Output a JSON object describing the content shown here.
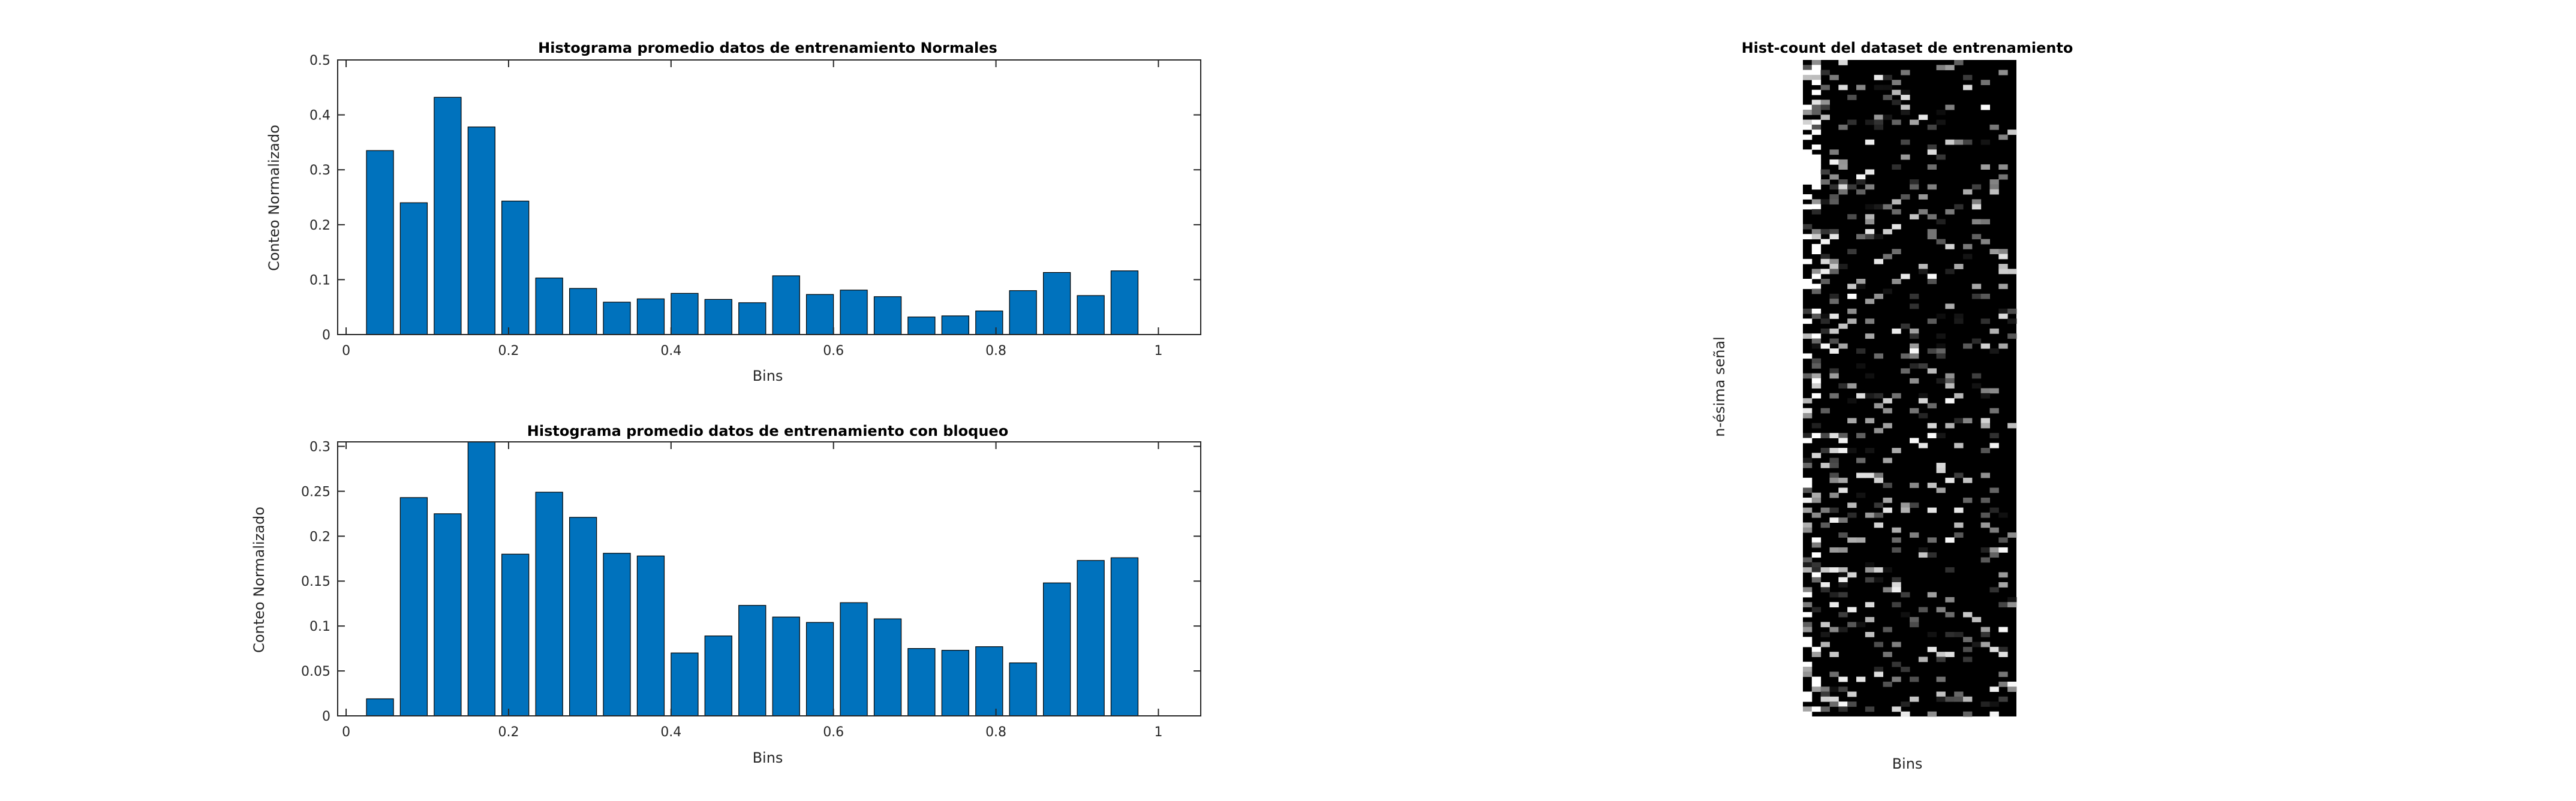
{
  "chart_data": [
    {
      "type": "bar",
      "title": "Histograma promedio datos de entrenamiento Normales",
      "xlabel": "Bins",
      "ylabel": "Conteo Normalizado",
      "x": [
        0.0417,
        0.0833,
        0.125,
        0.1667,
        0.2083,
        0.25,
        0.2917,
        0.3333,
        0.375,
        0.4167,
        0.4583,
        0.5,
        0.5417,
        0.5833,
        0.625,
        0.6667,
        0.7083,
        0.75,
        0.7917,
        0.8333,
        0.875,
        0.9167,
        0.9583,
        1.0
      ],
      "values": [
        0.335,
        0.24,
        0.432,
        0.378,
        0.243,
        0.103,
        0.084,
        0.059,
        0.065,
        0.075,
        0.064,
        0.058,
        0.107,
        0.073,
        0.081,
        0.069,
        0.032,
        0.034,
        0.043,
        0.08,
        0.113,
        0.071,
        0.116,
        0.0
      ],
      "xlim": [
        -0.0104,
        1.0521
      ],
      "ylim": [
        0,
        0.5
      ],
      "xticks": [
        "0",
        "0.2",
        "0.4",
        "0.6",
        "0.8",
        "1"
      ],
      "xtick_values": [
        0,
        0.2,
        0.4,
        0.6,
        0.8,
        1
      ],
      "yticks": [
        "0",
        "0.1",
        "0.2",
        "0.3",
        "0.4",
        "0.5"
      ],
      "ytick_values": [
        0,
        0.1,
        0.2,
        0.3,
        0.4,
        0.5
      ],
      "grid": false,
      "bar_color": "#0072BD"
    },
    {
      "type": "bar",
      "title": "Histograma promedio datos de entrenamiento con bloqueo",
      "xlabel": "Bins",
      "ylabel": "Conteo Normalizado",
      "x": [
        0.0417,
        0.0833,
        0.125,
        0.1667,
        0.2083,
        0.25,
        0.2917,
        0.3333,
        0.375,
        0.4167,
        0.4583,
        0.5,
        0.5417,
        0.5833,
        0.625,
        0.6667,
        0.7083,
        0.75,
        0.7917,
        0.8333,
        0.875,
        0.9167,
        0.9583,
        1.0
      ],
      "values": [
        0.019,
        0.243,
        0.225,
        0.305,
        0.18,
        0.249,
        0.221,
        0.181,
        0.178,
        0.07,
        0.089,
        0.123,
        0.11,
        0.104,
        0.126,
        0.108,
        0.075,
        0.073,
        0.077,
        0.059,
        0.148,
        0.173,
        0.176,
        0.0
      ],
      "xlim": [
        -0.0104,
        1.0521
      ],
      "ylim": [
        0,
        0.305
      ],
      "xticks": [
        "0",
        "0.2",
        "0.4",
        "0.6",
        "0.8",
        "1"
      ],
      "xtick_values": [
        0,
        0.2,
        0.4,
        0.6,
        0.8,
        1
      ],
      "yticks": [
        "0",
        "0.05",
        "0.1",
        "0.15",
        "0.2",
        "0.25",
        "0.3"
      ],
      "ytick_values": [
        0,
        0.05,
        0.1,
        0.15,
        0.2,
        0.25,
        0.3
      ],
      "grid": false,
      "bar_color": "#0072BD"
    },
    {
      "type": "heatmap",
      "title": "Hist-count del dataset de entrenamiento",
      "xlabel": "Bins",
      "ylabel": "n-ésima señal",
      "colormap": "gray",
      "rows": 132,
      "cols": 24,
      "row_intensity_profile": [
        0.65,
        0.55,
        0.6,
        0.5,
        0.35,
        0.3,
        0.45,
        0.4,
        0.5,
        0.55,
        0.45,
        0.5,
        0.4,
        0.45,
        0.55,
        0.6,
        0.5,
        0.45,
        0.5,
        0.55,
        0.5,
        0.45,
        0.55,
        0.5
      ],
      "col_intensity_profile": [
        0.9,
        0.75,
        0.55,
        0.45,
        0.35,
        0.35,
        0.3,
        0.3,
        0.3,
        0.25,
        0.25,
        0.3,
        0.3,
        0.25,
        0.25,
        0.25,
        0.3,
        0.25,
        0.2,
        0.2,
        0.25,
        0.3,
        0.3,
        0.3
      ],
      "grid": false
    }
  ]
}
